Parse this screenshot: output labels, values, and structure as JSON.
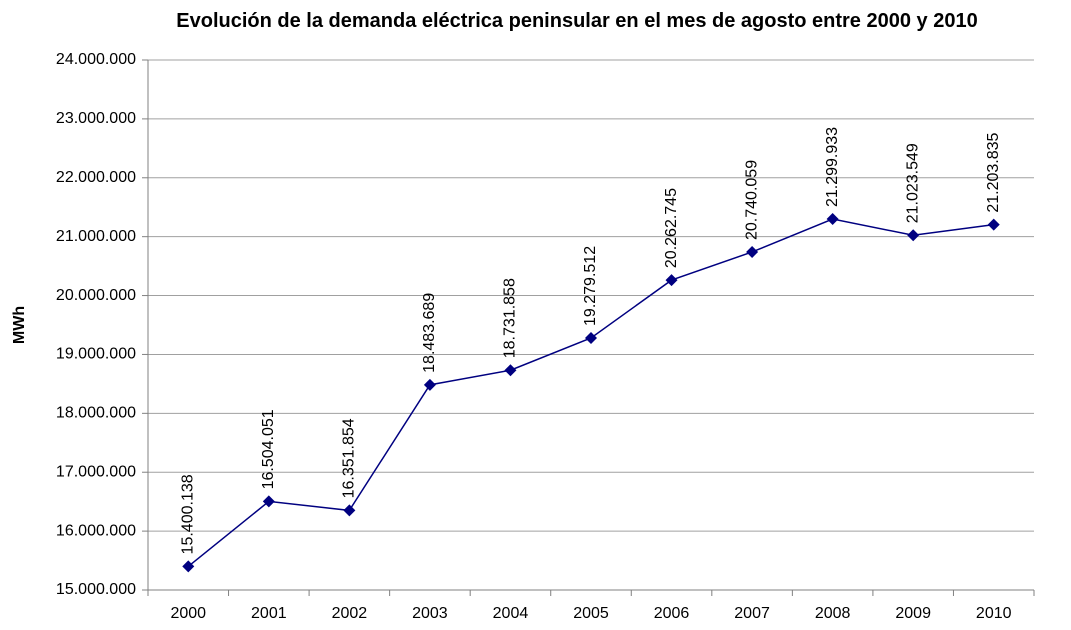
{
  "chart_data": {
    "type": "line",
    "title": "Evolución de la demanda eléctrica peninsular en el mes de agosto entre 2000 y 2010",
    "y_label": "MWh",
    "categories": [
      "2000",
      "2001",
      "2002",
      "2003",
      "2004",
      "2005",
      "2006",
      "2007",
      "2008",
      "2009",
      "2010"
    ],
    "values": [
      15400138,
      16504051,
      16351854,
      18483689,
      18731858,
      19279512,
      20262745,
      20740059,
      21299933,
      21023549,
      21203835
    ],
    "value_labels": [
      "15.400.138",
      "16.504.051",
      "16.351.854",
      "18.483.689",
      "18.731.858",
      "19.279.512",
      "20.262.745",
      "20.740.059",
      "21.299.933",
      "21.023.549",
      "21.203.835"
    ],
    "color": "#000080",
    "ylim": [
      15000000,
      24000000
    ],
    "yticks": [
      {
        "value": 15000000,
        "label": "15.000.000"
      },
      {
        "value": 16000000,
        "label": "16.000.000"
      },
      {
        "value": 17000000,
        "label": "17.000.000"
      },
      {
        "value": 18000000,
        "label": "18.000.000"
      },
      {
        "value": 19000000,
        "label": "19.000.000"
      },
      {
        "value": 20000000,
        "label": "20.000.000"
      },
      {
        "value": 21000000,
        "label": "21.000.000"
      },
      {
        "value": 22000000,
        "label": "22.000.000"
      },
      {
        "value": 23000000,
        "label": "23.000.000"
      },
      {
        "value": 24000000,
        "label": "24.000.000"
      }
    ],
    "grid": true
  }
}
